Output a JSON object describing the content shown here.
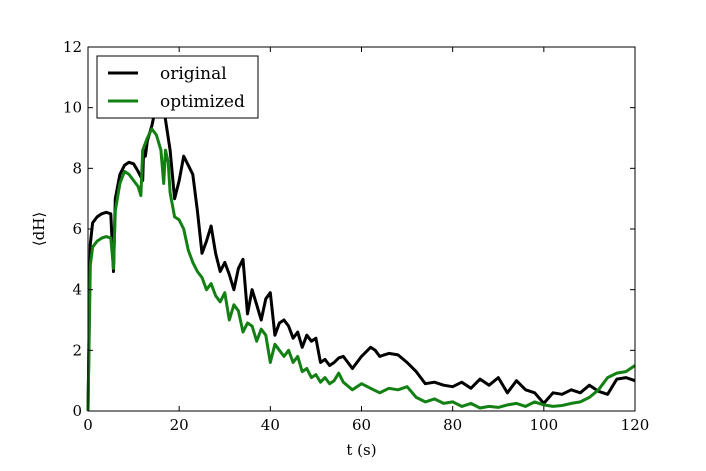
{
  "chart_data": {
    "type": "line",
    "xlabel": "t (s)",
    "ylabel": "⟨dH⟩",
    "xlim": [
      0,
      120
    ],
    "ylim": [
      0,
      12
    ],
    "xticks": [
      0,
      20,
      40,
      60,
      80,
      100,
      120
    ],
    "yticks": [
      0,
      2,
      4,
      6,
      8,
      10,
      12
    ],
    "xtick_labels": [
      "0",
      "20",
      "40",
      "60",
      "80",
      "100",
      "120"
    ],
    "ytick_labels": [
      "0",
      "2",
      "4",
      "6",
      "8",
      "10",
      "12"
    ],
    "grid": false,
    "legend_position": "top-left",
    "series": [
      {
        "name": "original",
        "color": "#000000",
        "x": [
          0,
          0.5,
          1,
          2,
          3,
          4,
          5,
          5.6,
          6,
          7,
          8,
          9,
          10,
          11,
          12,
          12.2,
          12.6,
          13,
          14,
          15,
          16,
          17,
          18,
          19,
          20,
          21,
          22,
          23,
          24,
          25,
          26,
          27,
          28,
          29,
          30,
          31,
          32,
          33,
          34,
          35,
          36,
          37,
          38,
          39,
          40,
          41,
          42,
          43,
          44,
          45,
          46,
          47,
          48,
          49,
          50,
          51,
          52,
          53,
          54,
          55,
          56,
          58,
          60,
          62,
          63,
          64,
          66,
          68,
          70,
          72,
          74,
          76,
          78,
          80,
          82,
          84,
          86,
          88,
          90,
          92,
          94,
          96,
          98,
          100,
          102,
          104,
          106,
          108,
          110,
          112,
          114,
          116,
          118,
          120
        ],
        "values": [
          0,
          5.5,
          6.2,
          6.4,
          6.5,
          6.55,
          6.5,
          4.6,
          7.0,
          7.8,
          8.1,
          8.2,
          8.15,
          7.9,
          7.6,
          8.6,
          8.4,
          8.9,
          9.4,
          10.1,
          11.0,
          9.6,
          8.6,
          7.0,
          7.6,
          8.4,
          8.1,
          7.8,
          6.6,
          5.2,
          5.6,
          6.1,
          5.2,
          4.6,
          4.9,
          4.5,
          4.0,
          4.7,
          5.0,
          3.2,
          4.0,
          3.5,
          3.0,
          3.7,
          3.9,
          2.5,
          2.9,
          3.0,
          2.8,
          2.4,
          2.6,
          2.1,
          2.5,
          2.3,
          2.4,
          1.6,
          1.7,
          1.5,
          1.6,
          1.75,
          1.8,
          1.4,
          1.8,
          2.1,
          2.0,
          1.8,
          1.9,
          1.85,
          1.6,
          1.3,
          0.9,
          0.95,
          0.85,
          0.8,
          0.95,
          0.75,
          1.05,
          0.85,
          1.1,
          0.6,
          1.0,
          0.7,
          0.6,
          0.25,
          0.6,
          0.55,
          0.7,
          0.6,
          0.85,
          0.65,
          0.55,
          1.05,
          1.1,
          1.0
        ]
      },
      {
        "name": "optimized",
        "color": "#138013",
        "x": [
          0,
          0.5,
          1,
          2,
          3,
          4,
          5,
          5.6,
          6,
          7,
          8,
          9,
          10,
          11,
          11.6,
          12,
          13,
          14,
          15,
          16,
          16.6,
          17,
          17.6,
          18,
          19,
          20,
          21,
          22,
          23,
          24,
          25,
          26,
          27,
          28,
          29,
          30,
          31,
          32,
          33,
          34,
          35,
          36,
          37,
          38,
          39,
          40,
          41,
          42,
          43,
          44,
          45,
          46,
          47,
          48,
          49,
          50,
          51,
          52,
          53,
          54,
          55,
          56,
          58,
          60,
          62,
          64,
          66,
          68,
          70,
          72,
          74,
          76,
          78,
          80,
          82,
          84,
          86,
          88,
          90,
          92,
          94,
          96,
          98,
          100,
          102,
          104,
          106,
          108,
          110,
          112,
          114,
          116,
          118,
          120
        ],
        "values": [
          0,
          4.8,
          5.4,
          5.6,
          5.7,
          5.75,
          5.7,
          4.7,
          6.6,
          7.5,
          7.9,
          7.8,
          7.6,
          7.4,
          7.1,
          8.6,
          9.0,
          9.3,
          9.1,
          8.6,
          7.5,
          8.6,
          8.2,
          7.2,
          6.4,
          6.3,
          6.0,
          5.3,
          4.9,
          4.6,
          4.4,
          4.0,
          4.2,
          3.8,
          3.6,
          3.9,
          3.0,
          3.5,
          3.3,
          2.6,
          2.9,
          2.8,
          2.3,
          2.7,
          2.5,
          1.6,
          2.2,
          2.0,
          1.8,
          2.0,
          1.6,
          1.8,
          1.3,
          1.4,
          1.1,
          1.2,
          0.95,
          1.1,
          0.9,
          1.0,
          1.25,
          0.95,
          0.7,
          0.9,
          0.75,
          0.6,
          0.75,
          0.7,
          0.8,
          0.45,
          0.3,
          0.4,
          0.25,
          0.3,
          0.15,
          0.25,
          0.1,
          0.15,
          0.12,
          0.2,
          0.25,
          0.15,
          0.3,
          0.2,
          0.15,
          0.18,
          0.25,
          0.3,
          0.45,
          0.7,
          1.1,
          1.25,
          1.3,
          1.5
        ]
      }
    ]
  }
}
